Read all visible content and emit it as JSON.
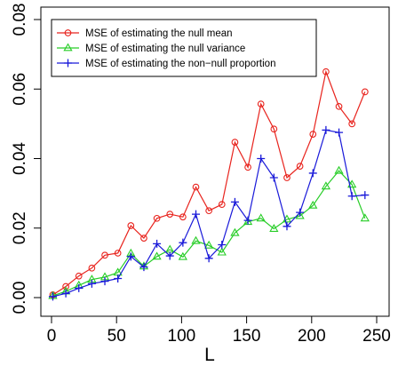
{
  "chart_data": {
    "type": "line",
    "title": "",
    "xlabel": "L",
    "ylabel": "",
    "xlim": [
      0,
      250
    ],
    "ylim": [
      0,
      0.08
    ],
    "xticks": [
      0,
      50,
      100,
      150,
      200,
      250
    ],
    "yticks": [
      0.0,
      0.02,
      0.04,
      0.06,
      0.08
    ],
    "xtick_labels": [
      "0",
      "50",
      "100",
      "150",
      "200",
      "250"
    ],
    "ytick_labels": [
      "0.00",
      "0.02",
      "0.04",
      "0.06",
      "0.08"
    ],
    "grid": false,
    "legend_position": "top-left",
    "x": [
      1,
      11,
      21,
      31,
      41,
      51,
      61,
      71,
      81,
      91,
      101,
      111,
      121,
      131,
      141,
      151,
      161,
      171,
      181,
      191,
      201,
      211,
      221,
      231,
      241
    ],
    "series": [
      {
        "name": "MSE of estimating the null mean",
        "color": "#e8231d",
        "marker": "circle",
        "values": [
          0.0008,
          0.0032,
          0.0062,
          0.0085,
          0.0122,
          0.0128,
          0.0207,
          0.0171,
          0.0228,
          0.024,
          0.0232,
          0.0318,
          0.025,
          0.0268,
          0.0447,
          0.0375,
          0.0557,
          0.0485,
          0.0345,
          0.0378,
          0.047,
          0.065,
          0.055,
          0.05,
          0.0592
        ]
      },
      {
        "name": "MSE of estimating the null variance",
        "color": "#27cd27",
        "marker": "triangle",
        "values": [
          0.0005,
          0.0018,
          0.0035,
          0.0052,
          0.0059,
          0.0072,
          0.0127,
          0.009,
          0.0118,
          0.0138,
          0.0117,
          0.0163,
          0.015,
          0.013,
          0.0186,
          0.0218,
          0.0228,
          0.0198,
          0.0225,
          0.0235,
          0.0265,
          0.032,
          0.0365,
          0.0325,
          0.0228
        ]
      },
      {
        "name": "MSE of estimating the non−null proportion",
        "color": "#1a1ad9",
        "marker": "plus",
        "values": [
          0.0003,
          0.0012,
          0.0027,
          0.004,
          0.0047,
          0.0055,
          0.0118,
          0.0088,
          0.0155,
          0.012,
          0.0158,
          0.024,
          0.0113,
          0.0152,
          0.0275,
          0.0222,
          0.04,
          0.0345,
          0.0205,
          0.0245,
          0.0358,
          0.0482,
          0.0475,
          0.0292,
          0.0295
        ]
      }
    ]
  }
}
